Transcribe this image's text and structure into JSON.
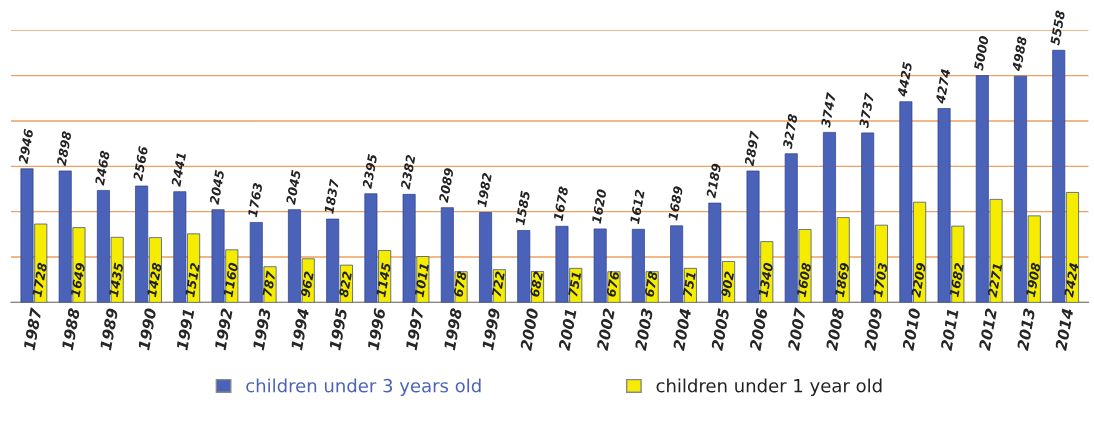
{
  "chart_data": {
    "type": "bar",
    "categories": [
      "1987",
      "1988",
      "1989",
      "1990",
      "1991",
      "1992",
      "1993",
      "1994",
      "1995",
      "1996",
      "1997",
      "1998",
      "1999",
      "2000",
      "2001",
      "2002",
      "2003",
      "2004",
      "2005",
      "2006",
      "2007",
      "2008",
      "2009",
      "2010",
      "2011",
      "2012",
      "2013",
      "2014"
    ],
    "series": [
      {
        "name": "children under 3 years old",
        "color": "#4a63b8",
        "values": [
          2946,
          2898,
          2468,
          2566,
          2441,
          2045,
          1763,
          2045,
          1837,
          2395,
          2382,
          2089,
          1982,
          1585,
          1678,
          1620,
          1612,
          1689,
          2189,
          2897,
          3278,
          3747,
          3737,
          4425,
          4274,
          5000,
          4988,
          5558
        ]
      },
      {
        "name": "children under 1 year old",
        "color": "#f5ec00",
        "values": [
          1728,
          1649,
          1435,
          1428,
          1512,
          1160,
          787,
          962,
          822,
          1145,
          1011,
          678,
          722,
          682,
          751,
          676,
          678,
          751,
          902,
          1340,
          1608,
          1869,
          1703,
          2209,
          1682,
          2271,
          1908,
          2424
        ]
      }
    ],
    "ylim": [
      0,
      6000
    ],
    "yticks": [
      {
        "value": 0,
        "label": null
      },
      {
        "value": 1000,
        "label": null
      },
      {
        "value": 2000,
        "label": null
      },
      {
        "value": 3000,
        "label": null
      },
      {
        "value": 4000,
        "label": null
      },
      {
        "value": 5000,
        "label": null
      },
      {
        "value": 6000,
        "label": null
      }
    ],
    "grid": "y",
    "legend": "bottom",
    "data_labels": true,
    "tick_labels": "x"
  }
}
